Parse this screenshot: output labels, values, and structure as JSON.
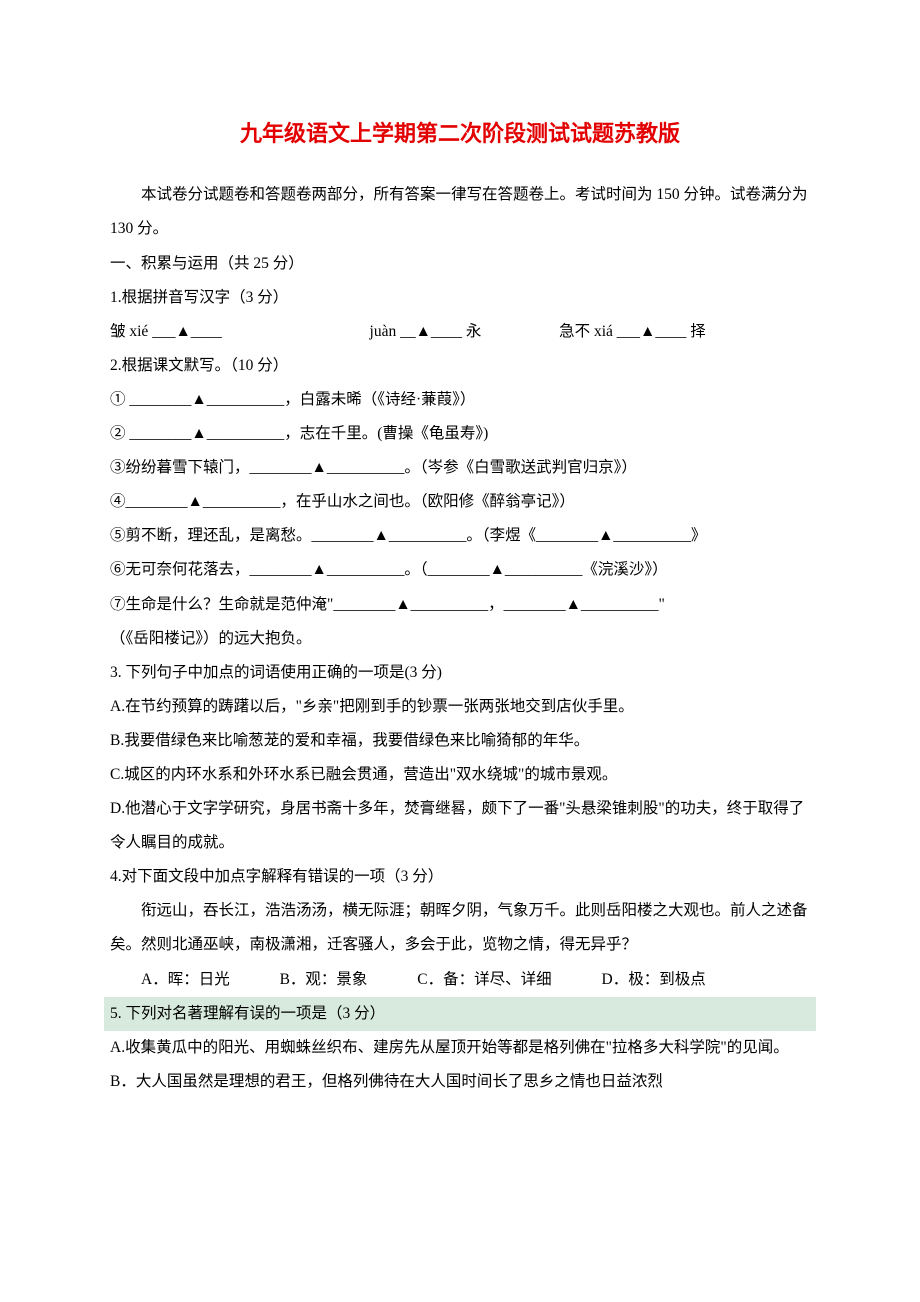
{
  "title": "九年级语文上学期第二次阶段测试试题苏教版",
  "intro": "本试卷分试题卷和答题卷两部分，所有答案一律写在答题卷上。考试时间为 150 分钟。试卷满分为 130 分。",
  "section1_header": "一、积累与运用（共 25 分）",
  "q1_header": "1.根据拼音写汉字（3 分）",
  "q1_item1_pre": "皱 xié",
  "q1_item2_pre": "juàn",
  "q1_item2_suf": "永",
  "q1_item3_pre": "急不 xiá",
  "q1_item3_suf": "择",
  "q2_header": "2.根据课文默写。（10 分）",
  "q2_1": "① ________▲__________，白露未晞（《诗经·蒹葭》）",
  "q2_2": "② ________▲__________，志在千里。(曹操《龟虽寿》)",
  "q2_3": "③纷纷暮雪下辕门，________▲__________。（岑参《白雪歌送武判官归京》）",
  "q2_4": "④________▲__________，在乎山水之间也。（欧阳修《醉翁亭记》）",
  "q2_5": "⑤剪不断，理还乱，是离愁。________▲__________。（李煜《________▲__________》",
  "q2_6": "⑥无可奈何花落去，________▲__________。（________▲__________《浣溪沙》）",
  "q2_7": "⑦生命是什么？生命就是范仲淹\"________▲__________，________▲__________\"",
  "q2_7b": "（《岳阳楼记》）的远大抱负。",
  "q3_header": "3. 下列句子中加点的词语使用正确的一项是(3 分)",
  "q3_a": "A.在节约预算的踌躇以后，\"乡亲\"把刚到手的钞票一张两张地交到店伙手里。",
  "q3_b": "B.我要借绿色来比喻葱茏的爱和幸福，我要借绿色来比喻猗郁的年华。",
  "q3_c": "C.城区的内环水系和外环水系已融会贯通，营造出\"双水绕城\"的城市景观。",
  "q3_d": "D.他潜心于文字学研究，身居书斋十多年，焚膏继晷，颇下了一番\"头悬梁锥刺股\"的功夫，终于取得了令人瞩目的成就。",
  "q4_header": "4.对下面文段中加点字解释有错误的一项（3 分）",
  "q4_passage": "衔远山，吞长江，浩浩汤汤，横无际涯；朝晖夕阴，气象万千。此则岳阳楼之大观也。前人之述备矣。然则北通巫峡，南极潇湘，迁客骚人，多会于此，览物之情，得无异乎？",
  "q4_a": "A．晖：日光",
  "q4_b": "B．观：景象",
  "q4_c": "C．备：详尽、详细",
  "q4_d": "D．极：到极点",
  "q5_header": "5. 下列对名著理解有误的一项是（3 分）",
  "q5_a": "A.收集黄瓜中的阳光、用蜘蛛丝织布、建房先从屋顶开始等都是格列佛在\"拉格多大科学院\"的见闻。",
  "q5_b": "B．大人国虽然是理想的君王，但格列佛待在大人国时间长了思乡之情也日益浓烈"
}
